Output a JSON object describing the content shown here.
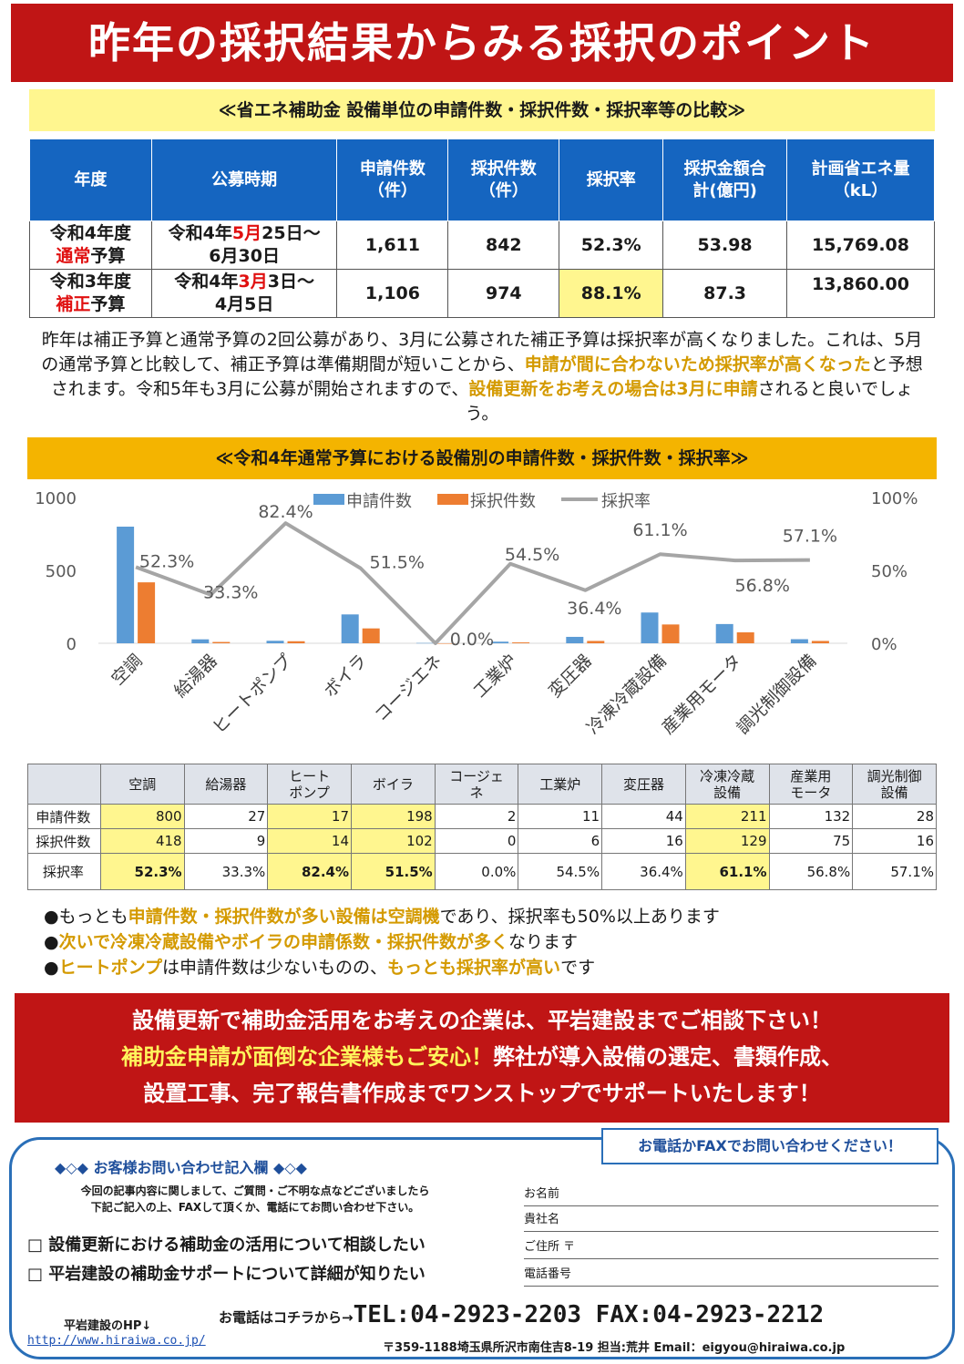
{
  "title": "昨年の採択結果からみる採択のポイント",
  "section1_heading": "≪省エネ補助金 設備単位の申請件数・採択件数・採択率等の比較≫",
  "compare_table": {
    "headers": [
      "年度",
      "公募時期",
      "申請件数\n（件）",
      "採択件数\n（件）",
      "採択率",
      "採択金額合\n計(億円)",
      "計画省エネ量\n（kL）"
    ],
    "rows": [
      {
        "year_a": "令和4年度",
        "year_red": "通常",
        "year_b": "予算",
        "period_a": "令和4年",
        "period_red": "5月",
        "period_b": "25日～",
        "period_c": "6月30日",
        "applications": "1,611",
        "adopted": "842",
        "rate": "52.3%",
        "amount": "53.98",
        "energy": "15,769.08"
      },
      {
        "year_a": "令和3年度",
        "year_red": "補正",
        "year_b": "予算",
        "period_a": "令和4年",
        "period_red": "3月",
        "period_b": "3日～",
        "period_c": "4月5日",
        "applications": "1,106",
        "adopted": "974",
        "rate": "88.1%",
        "amount": "87.3",
        "energy": "13,860.00"
      }
    ]
  },
  "paragraph": {
    "p1": "昨年は補正予算と通常予算の2回公募があり、3月に公募された補正予算は採択率が高くなりました。これは、5月の通常予算と比較して、補正予算は準備期間が短いことから、",
    "p2": "申請が間に合わないため採択率が高くなった",
    "p3": "と予想されます。令和5年も3月に公募が開始されますので、",
    "p4": "設備更新をお考えの場合は3月に申請",
    "p5": "されると良いでしょう。"
  },
  "section2_heading": "≪令和4年通常予算における設備別の申請件数・採択件数・採択率≫",
  "chart_data": {
    "type": "bar",
    "categories": [
      "空調",
      "給湯器",
      "ヒートポンプ",
      "ボイラ",
      "コージエネ",
      "工業炉",
      "変圧器",
      "冷凍冷蔵設備",
      "産業用モータ",
      "調光制御設備"
    ],
    "series": [
      {
        "name": "申請件数",
        "type": "bar",
        "axis": "left",
        "color": "#5b9bd5",
        "values": [
          800,
          27,
          17,
          198,
          2,
          11,
          44,
          211,
          132,
          28
        ]
      },
      {
        "name": "採択件数",
        "type": "bar",
        "axis": "left",
        "color": "#ed7d31",
        "values": [
          418,
          9,
          14,
          102,
          0,
          6,
          16,
          129,
          75,
          16
        ]
      },
      {
        "name": "採択率",
        "type": "line",
        "axis": "right",
        "color": "#a5a5a5",
        "values": [
          52.3,
          33.3,
          82.4,
          51.5,
          0.0,
          54.5,
          36.4,
          61.1,
          56.8,
          57.1
        ]
      }
    ],
    "rate_labels": [
      "52.3%",
      "33.3%",
      "82.4%",
      "51.5%",
      "0.0%",
      "54.5%",
      "36.4%",
      "61.1%",
      "56.8%",
      "57.1%"
    ],
    "left_axis": {
      "ylim": [
        0,
        1000
      ],
      "ticks": [
        "0",
        "500",
        "1000"
      ]
    },
    "right_axis": {
      "ylim": [
        0,
        100
      ],
      "ticks": [
        "0%",
        "50%",
        "100%"
      ]
    },
    "legend": "top-center",
    "grid": false
  },
  "data_table": {
    "headers": [
      "",
      "空調",
      "給湯器",
      "ヒート\nポンプ",
      "ボイラ",
      "コージェ\nネ",
      "工業炉",
      "変圧器",
      "冷凍冷蔵\n設備",
      "産業用\nモータ",
      "調光制御\n設備"
    ],
    "rows": [
      {
        "label": "申請件数",
        "values": [
          "800",
          "27",
          "17",
          "198",
          "2",
          "11",
          "44",
          "211",
          "132",
          "28"
        ]
      },
      {
        "label": "採択件数",
        "values": [
          "418",
          "9",
          "14",
          "102",
          "0",
          "6",
          "16",
          "129",
          "75",
          "16"
        ]
      },
      {
        "label": "採択率",
        "values": [
          "52.3%",
          "33.3%",
          "82.4%",
          "51.5%",
          "0.0%",
          "54.5%",
          "36.4%",
          "61.1%",
          "56.8%",
          "57.1%"
        ]
      }
    ],
    "highlight_columns": [
      1,
      3,
      4,
      8
    ]
  },
  "bullets": [
    {
      "a": "●もっとも",
      "g": "申請件数・採択件数が多い設備は空調機",
      "b": "であり、採択率も50%以上あります",
      "g2": "",
      "c": ""
    },
    {
      "a": "●",
      "g": "次いで冷凍冷蔵設備やボイラの申請係数・採択件数が多く",
      "b": "なります",
      "g2": "",
      "c": ""
    },
    {
      "a": "●",
      "g": "ヒートポンプ",
      "b": "は申請件数は少ないものの、",
      "g2": "もっとも採択率が高い",
      "c": "です"
    }
  ],
  "promo": {
    "line1": "設備更新で補助金活用をお考えの企業は、平岩建設までご相談下さい！",
    "line2_yellow": "補助金申請が面倒な企業様もご安心！",
    "line2_rest": "弊社が導入設備の選定、書類作成、",
    "line3": "設置工事、完了報告書作成までワンストップでサポートいたします！"
  },
  "contact": {
    "callout": "お電話かFAXでお問い合わせください！",
    "form_title": "◆◇◆ お客様お問い合わせ記入欄 ◆◇◆",
    "intro1": "今回の記事内容に関しまして、ご質問・ご不明な点などございましたら",
    "intro2": "下記ご記入の上、FAXして頂くか、電話にてお問い合わせ下さい。",
    "check1": "□ 設備更新における補助金の活用について相談したい",
    "check2": "□ 平岩建設の補助金サポートについて詳細が知りたい",
    "fields": [
      "お名前",
      "貴社名",
      "ご住所 〒",
      "電話番号"
    ],
    "hp_label": "平岩建設のHP↓",
    "hp_url": "http://www.hiraiwa.co.jp/",
    "tel_prefix": "お電話はコチラから→",
    "tel_numbers": "TEL:04-2923-2203 FAX:04-2923-2212",
    "address": "〒359-1188埼玉県所沢市南住吉8-19 担当:荒井 Email：eigyou@hiraiwa.co.jp"
  }
}
